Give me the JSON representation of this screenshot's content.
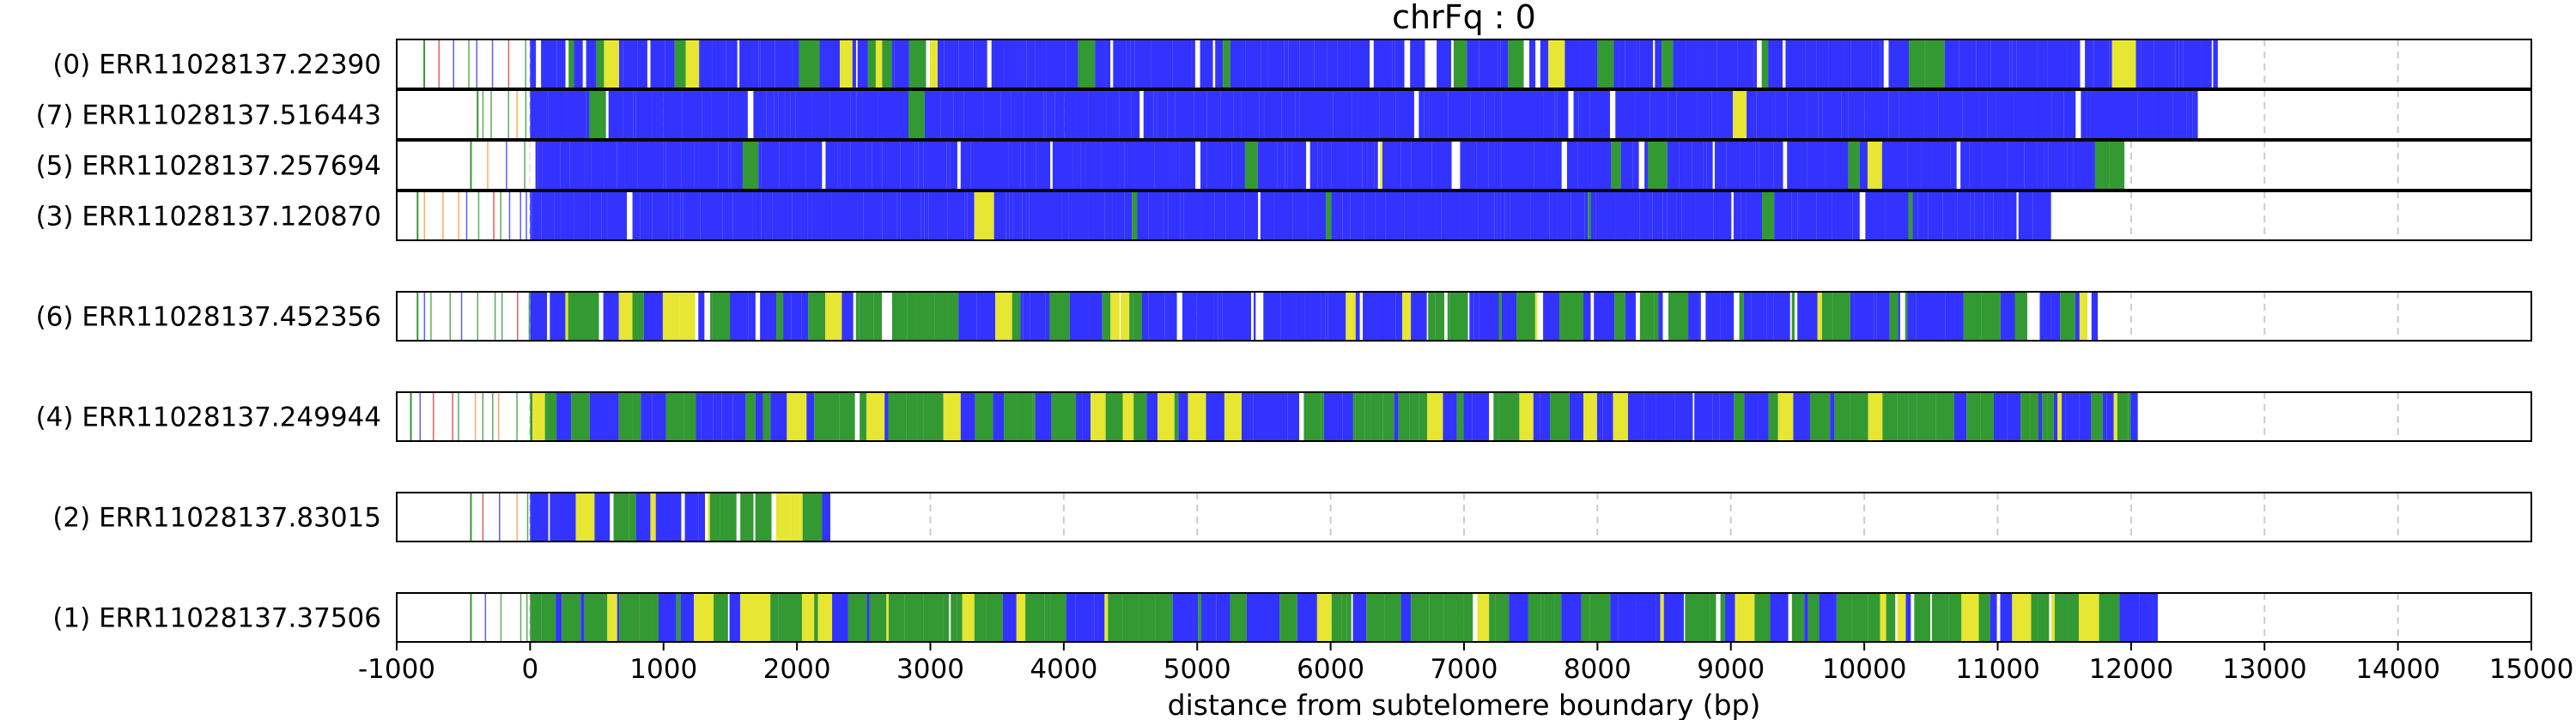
{
  "chart_data": {
    "type": "bar",
    "title": "chrFq : 0",
    "xlabel": "distance from subtelomere boundary (bp)",
    "ylabel": "",
    "xlim": [
      -1000,
      15000
    ],
    "xticks": [
      "-1000",
      "0",
      "1000",
      "2000",
      "3000",
      "4000",
      "5000",
      "6000",
      "7000",
      "8000",
      "9000",
      "10000",
      "11000",
      "12000",
      "13000",
      "14000",
      "15000"
    ],
    "grid": "dashed vertical lines every 1000 bp from 0 to 14000",
    "legend": "none",
    "colors": {
      "blue": "#3333ff",
      "green": "#339933",
      "yellow": "#e6e633",
      "orange": "#ff9933",
      "red": "#e63333",
      "white": "#ffffff",
      "grid": "#cccccc"
    },
    "groups": [
      {
        "reads": [
          {
            "label": "(0) ERR11028137.22390",
            "start": -800,
            "end": 12650,
            "profile": "blue-dense-with-white-gaps"
          },
          {
            "label": "(7) ERR11028137.516443",
            "start": -400,
            "end": 12500,
            "profile": "mostly-blue"
          },
          {
            "label": "(5) ERR11028137.257694",
            "start": -450,
            "end": 11950,
            "profile": "blue-with-white-gaps"
          },
          {
            "label": "(3) ERR11028137.120870",
            "start": -850,
            "end": 11400,
            "profile": "mostly-blue"
          }
        ]
      },
      {
        "reads": [
          {
            "label": "(6) ERR11028137.452356",
            "start": -850,
            "end": 11750,
            "profile": "mixed-blue-green-white"
          }
        ]
      },
      {
        "reads": [
          {
            "label": "(4) ERR11028137.249944",
            "start": -900,
            "end": 12050,
            "profile": "mixed-green-blue-yellow"
          }
        ]
      },
      {
        "reads": [
          {
            "label": "(2) ERR11028137.83015",
            "start": -450,
            "end": 2250,
            "profile": "mixed-yellow-green-blue"
          }
        ]
      },
      {
        "reads": [
          {
            "label": "(1) ERR11028137.37506",
            "start": -450,
            "end": 12200,
            "profile": "green-blue-with-yellow"
          }
        ]
      }
    ]
  }
}
